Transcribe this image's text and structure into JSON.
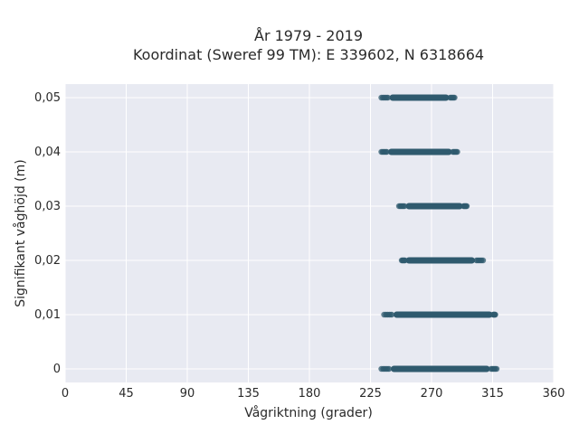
{
  "chart_data": {
    "type": "scatter",
    "title_line1": "År 1979 - 2019",
    "title_line2": "Koordinat (Sweref 99 TM): E 339602, N 6318664",
    "xlabel": "Vågriktning (grader)",
    "ylabel": "Signifikant våghöjd (m)",
    "xlim": [
      0,
      360
    ],
    "ylim": [
      -0.0025,
      0.0525
    ],
    "x_ticks": [
      0,
      45,
      90,
      135,
      180,
      225,
      270,
      315,
      360
    ],
    "x_tick_labels": [
      "0",
      "45",
      "90",
      "135",
      "180",
      "225",
      "270",
      "315",
      "360"
    ],
    "y_ticks": [
      0,
      0.01,
      0.02,
      0.03,
      0.04,
      0.05
    ],
    "y_tick_labels": [
      "0",
      "0,01",
      "0,02",
      "0,03",
      "0,04",
      "0,05"
    ],
    "grid": true,
    "point_color": "#2f5a6e",
    "background_color": "#e8eaf2",
    "point_groups": [
      {
        "y": 0.0,
        "x_min": 233,
        "x_max": 318,
        "dense_min": 240,
        "dense_max": 313
      },
      {
        "y": 0.01,
        "x_min": 235,
        "x_max": 317,
        "dense_min": 242,
        "dense_max": 315
      },
      {
        "y": 0.02,
        "x_min": 248,
        "x_max": 308,
        "dense_min": 251,
        "dense_max": 302
      },
      {
        "y": 0.03,
        "x_min": 246,
        "x_max": 296,
        "dense_min": 251,
        "dense_max": 293
      },
      {
        "y": 0.04,
        "x_min": 233,
        "x_max": 289,
        "dense_min": 238,
        "dense_max": 285
      },
      {
        "y": 0.05,
        "x_min": 233,
        "x_max": 287,
        "dense_min": 239,
        "dense_max": 283
      }
    ]
  }
}
